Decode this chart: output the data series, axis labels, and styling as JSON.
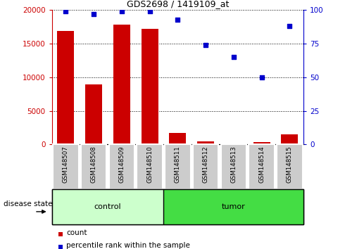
{
  "title": "GDS2698 / 1419109_at",
  "samples": [
    "GSM148507",
    "GSM148508",
    "GSM148509",
    "GSM148510",
    "GSM148511",
    "GSM148512",
    "GSM148513",
    "GSM148514",
    "GSM148515"
  ],
  "counts": [
    16900,
    8900,
    17800,
    17200,
    1700,
    400,
    150,
    350,
    1500
  ],
  "percentiles": [
    99,
    97,
    99,
    99,
    93,
    74,
    65,
    50,
    88
  ],
  "groups": [
    "control",
    "control",
    "control",
    "control",
    "tumor",
    "tumor",
    "tumor",
    "tumor",
    "tumor"
  ],
  "left_ylim": [
    0,
    20000
  ],
  "right_ylim": [
    0,
    100
  ],
  "left_yticks": [
    0,
    5000,
    10000,
    15000,
    20000
  ],
  "right_yticks": [
    0,
    25,
    50,
    75,
    100
  ],
  "bar_color": "#cc0000",
  "dot_color": "#0000cc",
  "control_color": "#ccffcc",
  "tumor_color": "#44dd44",
  "tick_label_bg": "#cccccc",
  "legend_count_label": "count",
  "legend_percentile_label": "percentile rank within the sample",
  "group_label": "disease state"
}
